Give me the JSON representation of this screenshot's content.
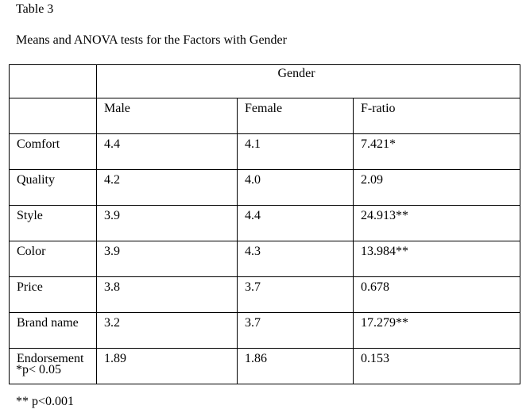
{
  "table_label": "Table 3",
  "table_title": "Means and ANOVA tests for the Factors with Gender",
  "group_header": "Gender",
  "columns": [
    "Male",
    "Female",
    "F-ratio"
  ],
  "rows": [
    {
      "factor": "Comfort",
      "male": "4.4",
      "female": "4.1",
      "f_ratio": "7.421*"
    },
    {
      "factor": "Quality",
      "male": "4.2",
      "female": "4.0",
      "f_ratio": "2.09"
    },
    {
      "factor": "Style",
      "male": "3.9",
      "female": "4.4",
      "f_ratio": "24.913**"
    },
    {
      "factor": "Color",
      "male": "3.9",
      "female": "4.3",
      "f_ratio": "13.984**"
    },
    {
      "factor": "Price",
      "male": "3.8",
      "female": "3.7",
      "f_ratio": "0.678"
    },
    {
      "factor": "Brand name",
      "male": "3.2",
      "female": "3.7",
      "f_ratio": "17.279**"
    },
    {
      "factor": "Endorsement",
      "male": "1.89",
      "female": "1.86",
      "f_ratio": "0.153"
    }
  ],
  "notes": [
    "*p< 0.05",
    "** p<0.001"
  ]
}
